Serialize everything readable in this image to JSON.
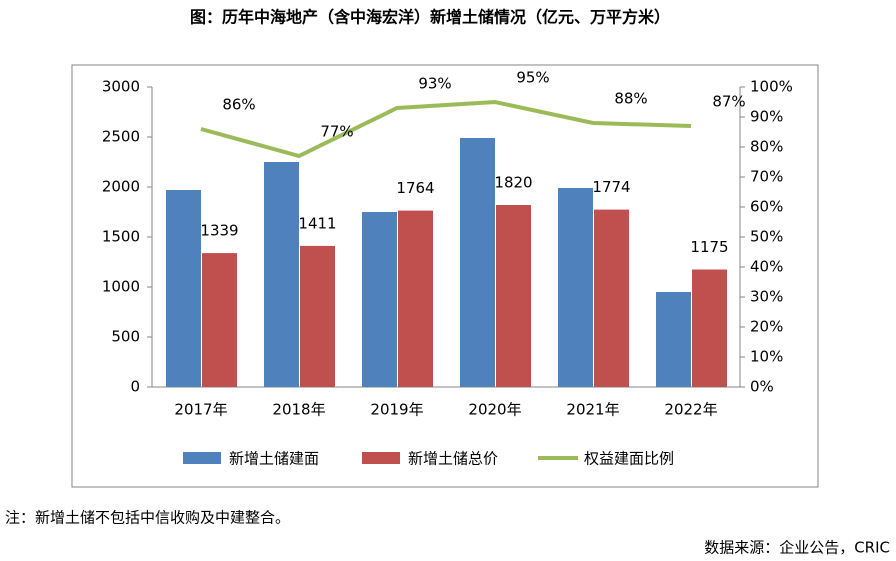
{
  "chart_data": {
    "type": "bar-line",
    "title": "图：历年中海地产（含中海宏洋）新增土储情况（亿元、万平方米）",
    "categories": [
      "2017年",
      "2018年",
      "2019年",
      "2020年",
      "2021年",
      "2022年"
    ],
    "series": [
      {
        "name": "新增土储建面",
        "color": "#4f81bd",
        "type": "bar",
        "values": [
          1970,
          2250,
          1750,
          2490,
          1990,
          950
        ]
      },
      {
        "name": "新增土储总价",
        "color": "#c0504d",
        "type": "bar",
        "values": [
          1339,
          1411,
          1764,
          1820,
          1774,
          1175
        ],
        "show_labels": true
      },
      {
        "name": "权益建面比例",
        "color": "#9bbb59",
        "type": "line",
        "axis": "y2",
        "values": [
          86,
          77,
          93,
          95,
          88,
          87
        ],
        "value_labels": [
          "86%",
          "77%",
          "93%",
          "95%",
          "88%",
          "87%"
        ]
      }
    ],
    "ylim": [
      0,
      3000
    ],
    "yticks": [
      0,
      500,
      1000,
      1500,
      2000,
      2500,
      3000
    ],
    "y2lim": [
      0,
      100
    ],
    "y2ticks": [
      {
        "value": 0,
        "label": "0%"
      },
      {
        "value": 10,
        "label": "10%"
      },
      {
        "value": 20,
        "label": "20%"
      },
      {
        "value": 30,
        "label": "30%"
      },
      {
        "value": 40,
        "label": "40%"
      },
      {
        "value": 50,
        "label": "50%"
      },
      {
        "value": 60,
        "label": "60%"
      },
      {
        "value": 70,
        "label": "70%"
      },
      {
        "value": 80,
        "label": "80%"
      },
      {
        "value": 90,
        "label": "90%"
      },
      {
        "value": 100,
        "label": "100%"
      }
    ],
    "grid": false,
    "legend": "bottom",
    "note": "注：新增土储不包括中信收购及中建整合。",
    "source": "数据来源：企业公告，CRIC"
  }
}
